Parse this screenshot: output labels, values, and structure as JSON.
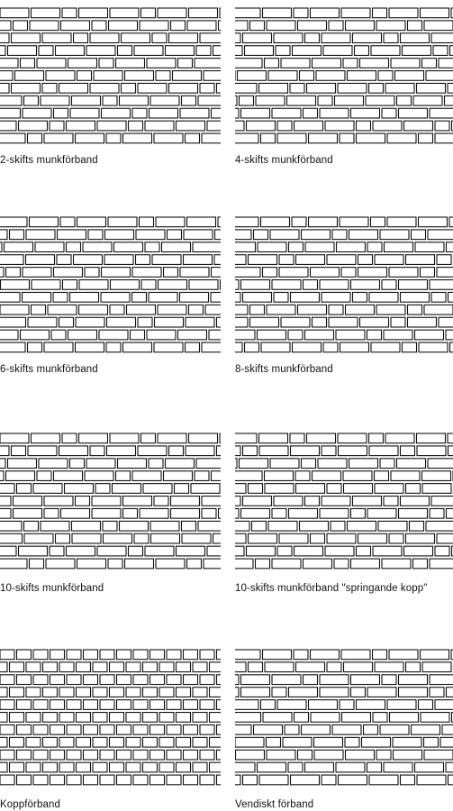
{
  "colors": {
    "stroke": "#111111",
    "brick_fill": "#ffffff",
    "background": "#ffffff"
  },
  "bonds": [
    {
      "caption": "2-skifts munkförband",
      "pattern": "SSH"
    },
    {
      "caption": "4-skifts munkförband",
      "pattern": "SSH"
    },
    {
      "caption": "6-skifts munkförband",
      "pattern": "SSH"
    },
    {
      "caption": "8-skifts munkförband",
      "pattern": "SSH"
    },
    {
      "caption": "10-skifts munkförband",
      "pattern": "SSH"
    },
    {
      "caption": "10-skifts munkförband \"springande kopp\"",
      "pattern": "SSH"
    },
    {
      "caption": "Koppförband",
      "pattern": "H"
    },
    {
      "caption": "Vendiskt förband",
      "pattern": "SSH"
    }
  ]
}
